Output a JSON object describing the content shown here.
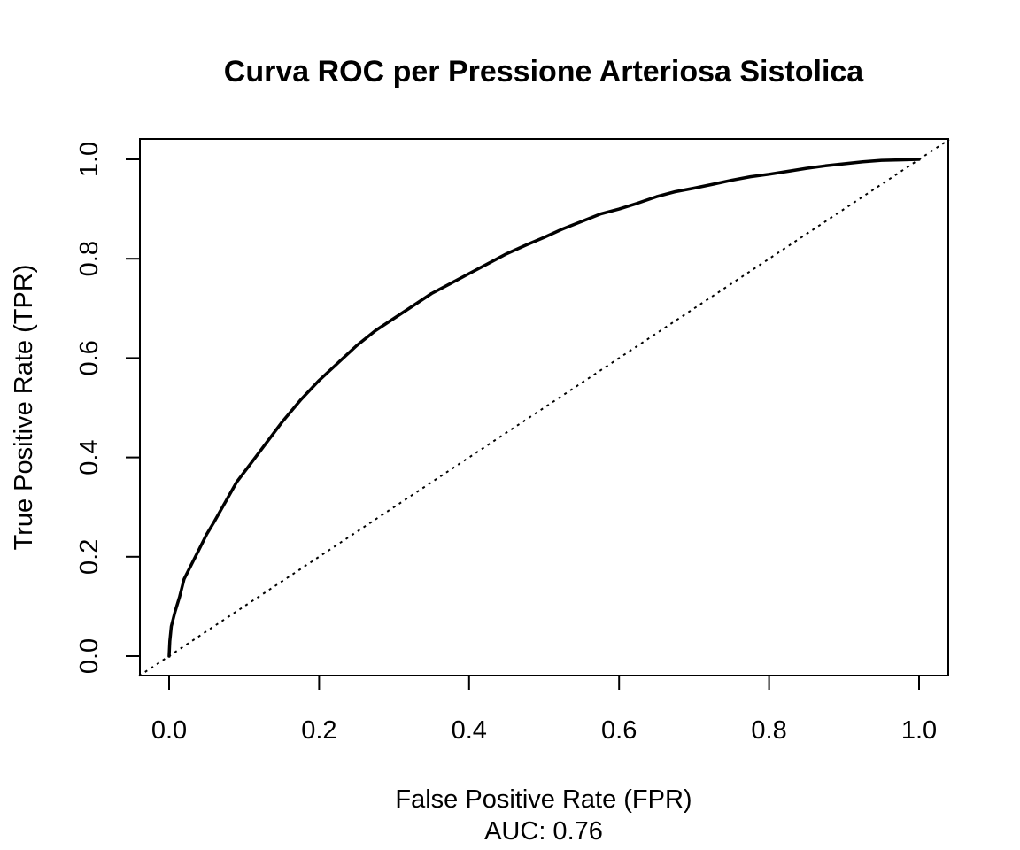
{
  "chart_data": {
    "type": "line",
    "title": "Curva ROC per Pressione Arteriosa Sistolica",
    "xlabel": "False Positive Rate (FPR)",
    "ylabel": "True Positive Rate (TPR)",
    "subtitle": "AUC: 0.76",
    "xlim": [
      0,
      1
    ],
    "ylim": [
      0,
      1
    ],
    "x_ticks": [
      "0.0",
      "0.2",
      "0.4",
      "0.6",
      "0.8",
      "1.0"
    ],
    "y_ticks": [
      "0.0",
      "0.2",
      "0.4",
      "0.6",
      "0.8",
      "1.0"
    ],
    "grid": false,
    "legend": "none",
    "series": [
      {
        "line_color": "#000000",
        "points": [
          [
            0.0,
            0.0
          ],
          [
            0.001,
            0.03
          ],
          [
            0.003,
            0.06
          ],
          [
            0.008,
            0.09
          ],
          [
            0.014,
            0.12
          ],
          [
            0.02,
            0.155
          ],
          [
            0.03,
            0.185
          ],
          [
            0.04,
            0.215
          ],
          [
            0.05,
            0.245
          ],
          [
            0.06,
            0.27
          ],
          [
            0.075,
            0.31
          ],
          [
            0.09,
            0.35
          ],
          [
            0.11,
            0.39
          ],
          [
            0.13,
            0.43
          ],
          [
            0.15,
            0.47
          ],
          [
            0.175,
            0.515
          ],
          [
            0.2,
            0.555
          ],
          [
            0.225,
            0.59
          ],
          [
            0.25,
            0.625
          ],
          [
            0.275,
            0.655
          ],
          [
            0.3,
            0.68
          ],
          [
            0.325,
            0.705
          ],
          [
            0.35,
            0.73
          ],
          [
            0.375,
            0.75
          ],
          [
            0.4,
            0.77
          ],
          [
            0.425,
            0.79
          ],
          [
            0.45,
            0.81
          ],
          [
            0.475,
            0.827
          ],
          [
            0.5,
            0.843
          ],
          [
            0.525,
            0.86
          ],
          [
            0.55,
            0.875
          ],
          [
            0.575,
            0.89
          ],
          [
            0.6,
            0.9
          ],
          [
            0.625,
            0.912
          ],
          [
            0.65,
            0.925
          ],
          [
            0.675,
            0.935
          ],
          [
            0.7,
            0.942
          ],
          [
            0.725,
            0.95
          ],
          [
            0.75,
            0.958
          ],
          [
            0.775,
            0.965
          ],
          [
            0.8,
            0.97
          ],
          [
            0.825,
            0.976
          ],
          [
            0.85,
            0.982
          ],
          [
            0.875,
            0.987
          ],
          [
            0.9,
            0.991
          ],
          [
            0.925,
            0.995
          ],
          [
            0.95,
            0.998
          ],
          [
            0.975,
            0.999
          ],
          [
            1.0,
            1.0
          ]
        ]
      },
      {
        "line_color": "#000000",
        "line_style": "dotted",
        "points": [
          [
            -0.04,
            -0.04
          ],
          [
            1.04,
            1.04
          ]
        ]
      }
    ]
  }
}
